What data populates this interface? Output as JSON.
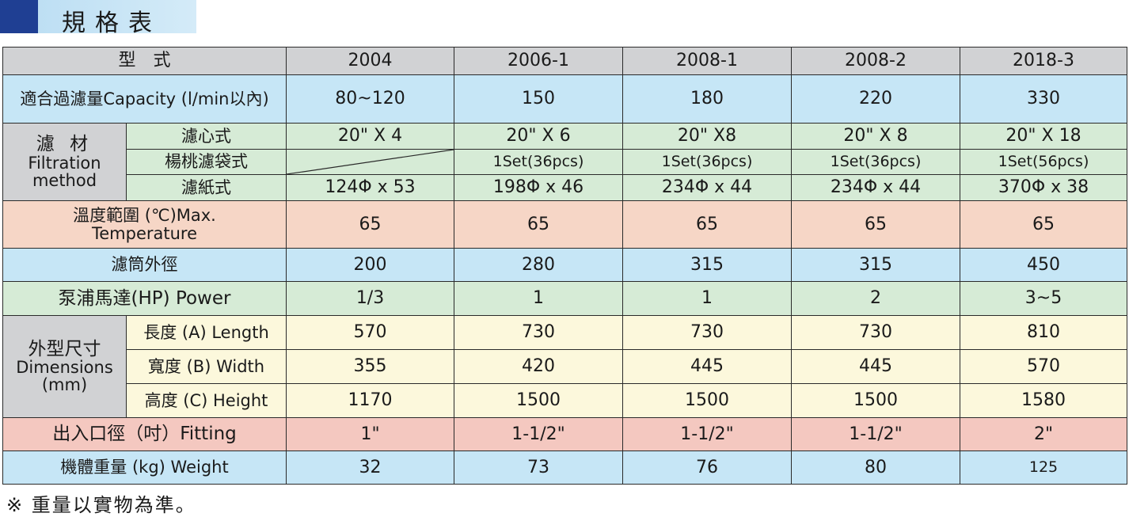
{
  "title": "規格表",
  "header": {
    "model_label": "型　式",
    "models": [
      "2004",
      "2006-1",
      "2008-1",
      "2008-2",
      "2018-3"
    ]
  },
  "capacity": {
    "label": "適合過濾量Capacity (l/min以內)",
    "values": [
      "80~120",
      "150",
      "180",
      "220",
      "330"
    ]
  },
  "filtration": {
    "group_label_zh": "濾 材",
    "group_label_en1": "Filtration",
    "group_label_en2": "method",
    "rows": [
      {
        "label": "濾心式",
        "values": [
          "20\" X 4",
          "20\" X 6",
          "20\" X8",
          "20\" X 8",
          "20\" X 18"
        ]
      },
      {
        "label": "楊桃濾袋式",
        "values": [
          "",
          "1Set(36pcs)",
          "1Set(36pcs)",
          "1Set(36pcs)",
          "1Set(56pcs)"
        ]
      },
      {
        "label": "濾紙式",
        "values": [
          "124Φ x 53",
          "198Φ x 46",
          "234Φ x 44",
          "234Φ x 44",
          "370Φ x 38"
        ]
      }
    ]
  },
  "temperature": {
    "label1": "溫度範圍 (℃)Max.",
    "label2": "Temperature",
    "values": [
      "65",
      "65",
      "65",
      "65",
      "65"
    ]
  },
  "housing": {
    "label": "濾筒外徑",
    "values": [
      "200",
      "280",
      "315",
      "315",
      "450"
    ]
  },
  "power": {
    "label": "泵浦馬達(HP) Power",
    "values": [
      "1/3",
      "1",
      "1",
      "2",
      "3~5"
    ]
  },
  "dimensions": {
    "group_label_zh": "外型尺寸",
    "group_label_en1": "Dimensions",
    "group_label_en2": "(mm)",
    "rows": [
      {
        "label": "長度 (A) Length",
        "values": [
          "570",
          "730",
          "730",
          "730",
          "810"
        ]
      },
      {
        "label": "寬度 (B) Width",
        "values": [
          "355",
          "420",
          "445",
          "445",
          "570"
        ]
      },
      {
        "label": "高度 (C) Height",
        "values": [
          "1170",
          "1500",
          "1500",
          "1500",
          "1580"
        ]
      }
    ]
  },
  "fitting": {
    "label": "出入口徑（吋）Fitting",
    "values": [
      "1\"",
      "1-1/2\"",
      "1-1/2\"",
      "1-1/2\"",
      "2\""
    ]
  },
  "weight": {
    "label": "機體重量 (kg) Weight",
    "values": [
      "32",
      "73",
      "76",
      "80",
      "125"
    ]
  },
  "note": "※ 重量以實物為準。",
  "colors": {
    "title_square": "#1f3f93",
    "title_bar": "#c6e3f5",
    "header_row": "#d1d2d4",
    "blue_row": "#c6e6f6",
    "green_row": "#d6ebd6",
    "pink_row": "#f6d6c6",
    "yellow_row": "#fcf8dc",
    "fitting_row": "#f4c8c0"
  }
}
